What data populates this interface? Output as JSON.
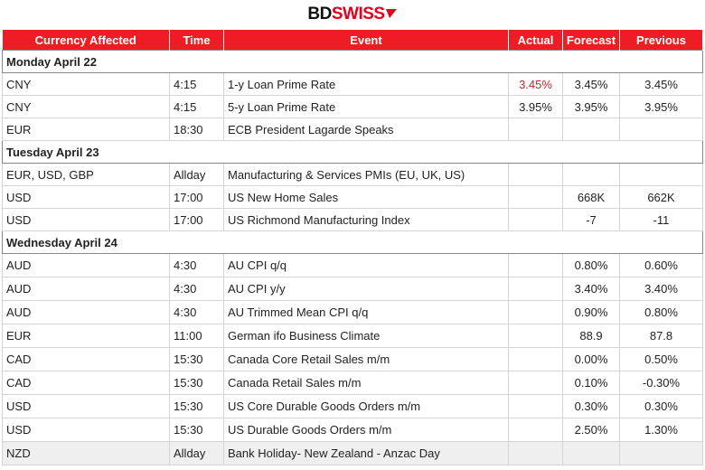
{
  "header": {
    "logo": [
      "BD",
      "SWISS"
    ]
  },
  "table": {
    "columns": [
      "Currency Affected",
      "Time",
      "Event",
      "Actual",
      "Forecast",
      "Previous"
    ],
    "sections": [
      {
        "title": "Monday April 22",
        "rows": [
          [
            "CNY",
            "4:15",
            "1-y Loan Prime Rate",
            "3.45%",
            "3.45%",
            "3.45%"
          ],
          [
            "CNY",
            "4:15",
            "5-y Loan Prime Rate",
            "3.95%",
            "3.95%",
            "3.95%"
          ],
          [
            "EUR",
            "18:30",
            "ECB President Lagarde Speaks",
            null,
            null,
            null
          ]
        ]
      },
      {
        "title": "Tuesday April 23",
        "rows": [
          [
            "EUR, USD, GBP",
            "Allday",
            "Manufacturing & Services PMIs (EU, UK, US)",
            null,
            null,
            null
          ],
          [
            "USD",
            "17:00",
            "US New Home Sales",
            null,
            "668K",
            "662K"
          ],
          [
            "USD",
            "17:00",
            "US Richmond Manufacturing Index",
            null,
            "-7",
            "-11"
          ]
        ]
      },
      {
        "title": "Wednesday April 24",
        "rows": [
          [
            "AUD",
            "4:30",
            "AU CPI q/q",
            null,
            "0.80%",
            "0.60%"
          ],
          [
            "AUD",
            "4:30",
            "AU CPI y/y",
            null,
            "3.40%",
            "3.40%"
          ],
          [
            "AUD",
            "4:30",
            "AU Trimmed Mean CPI q/q",
            null,
            "0.90%",
            "0.80%"
          ],
          [
            "EUR",
            "11:00",
            "German ifo Business Climate",
            null,
            "88.9",
            "87.8"
          ],
          [
            "CAD",
            "15:30",
            "Canada Core Retail Sales m/m",
            null,
            "0.00%",
            "0.50%"
          ],
          [
            "CAD",
            "15:30",
            "Canada Retail Sales m/m",
            null,
            "0.10%",
            "-0.30%"
          ],
          [
            "USD",
            "15:30",
            "US Core Durable Goods Orders m/m",
            null,
            "0.30%",
            "0.30%"
          ],
          [
            "USD",
            "15:30",
            "US Durable Goods Orders m/m",
            null,
            "2.50%",
            "1.30%"
          ],
          [
            "NZD",
            "Allday",
            "Bank Holiday- New Zealand - Anzac Day",
            null,
            null,
            null
          ]
        ]
      }
    ]
  }
}
